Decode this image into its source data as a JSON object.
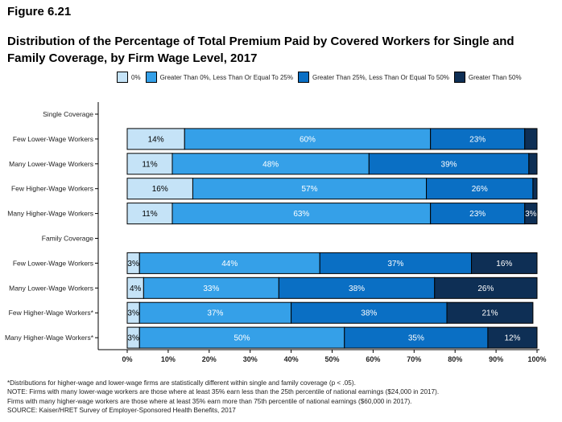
{
  "figure_label": "Figure 6.21",
  "title_lines": [
    "Distribution of the Percentage of Total Premium Paid by Covered Workers for Single and",
    "Family Coverage, by Firm Wage Level, 2017"
  ],
  "colors": {
    "zero": "#c5e3f7",
    "low": "#35a0e8",
    "mid": "#0a6fc4",
    "high": "#0e2f55"
  },
  "chart_data": {
    "type": "bar",
    "orientation": "horizontal",
    "stacked": true,
    "x_ticks": [
      "0%",
      "10%",
      "20%",
      "30%",
      "40%",
      "50%",
      "60%",
      "70%",
      "80%",
      "90%",
      "100%"
    ],
    "xlim": [
      0,
      100
    ],
    "series": [
      {
        "name": "0%",
        "color_key": "zero"
      },
      {
        "name": "Greater Than 0%, Less Than Or Equal To 25%",
        "color_key": "low"
      },
      {
        "name": "Greater Than 25%, Less Than Or Equal To 50%",
        "color_key": "mid"
      },
      {
        "name": "Greater Than 50%",
        "color_key": "high"
      }
    ],
    "rows": [
      {
        "label": "Single Coverage",
        "header": true
      },
      {
        "label": "Few Lower-Wage Workers",
        "values": [
          14,
          60,
          23,
          3
        ],
        "labels": [
          "14%",
          "60%",
          "23%",
          ""
        ]
      },
      {
        "label": "Many Lower-Wage Workers",
        "values": [
          11,
          48,
          39,
          2
        ],
        "labels": [
          "11%",
          "48%",
          "39%",
          ""
        ]
      },
      {
        "label": "Few Higher-Wage Workers",
        "values": [
          16,
          57,
          26,
          1
        ],
        "labels": [
          "16%",
          "57%",
          "26%",
          ""
        ]
      },
      {
        "label": "Many Higher-Wage Workers",
        "values": [
          11,
          63,
          23,
          3
        ],
        "labels": [
          "11%",
          "63%",
          "23%",
          "3%"
        ]
      },
      {
        "label": "Family Coverage",
        "header": true
      },
      {
        "label": "Few Lower-Wage Workers",
        "values": [
          3,
          44,
          37,
          16
        ],
        "labels": [
          "3%",
          "44%",
          "37%",
          "16%"
        ]
      },
      {
        "label": "Many Lower-Wage Workers",
        "values": [
          4,
          33,
          38,
          26
        ],
        "labels": [
          "4%",
          "33%",
          "38%",
          "26%"
        ]
      },
      {
        "label": "Few Higher-Wage Workers*",
        "values": [
          3,
          37,
          38,
          21
        ],
        "labels": [
          "3%",
          "37%",
          "38%",
          "21%"
        ]
      },
      {
        "label": "Many Higher-Wage Workers*",
        "values": [
          3,
          50,
          35,
          12
        ],
        "labels": [
          "3%",
          "50%",
          "35%",
          "12%"
        ]
      }
    ]
  },
  "notes": [
    "*Distributions for higher-wage and lower-wage firms are statistically different within single and family coverage (p < .05).",
    "NOTE: Firms with many lower-wage workers are those where at least 35% earn less than the 25th percentile of national earnings ($24,000 in 2017).",
    "Firms with many higher-wage workers are those where at least 35% earn more than 75th percentile of national earnings ($60,000 in 2017).",
    "SOURCE: Kaiser/HRET Survey of Employer-Sponsored Health Benefits, 2017"
  ]
}
